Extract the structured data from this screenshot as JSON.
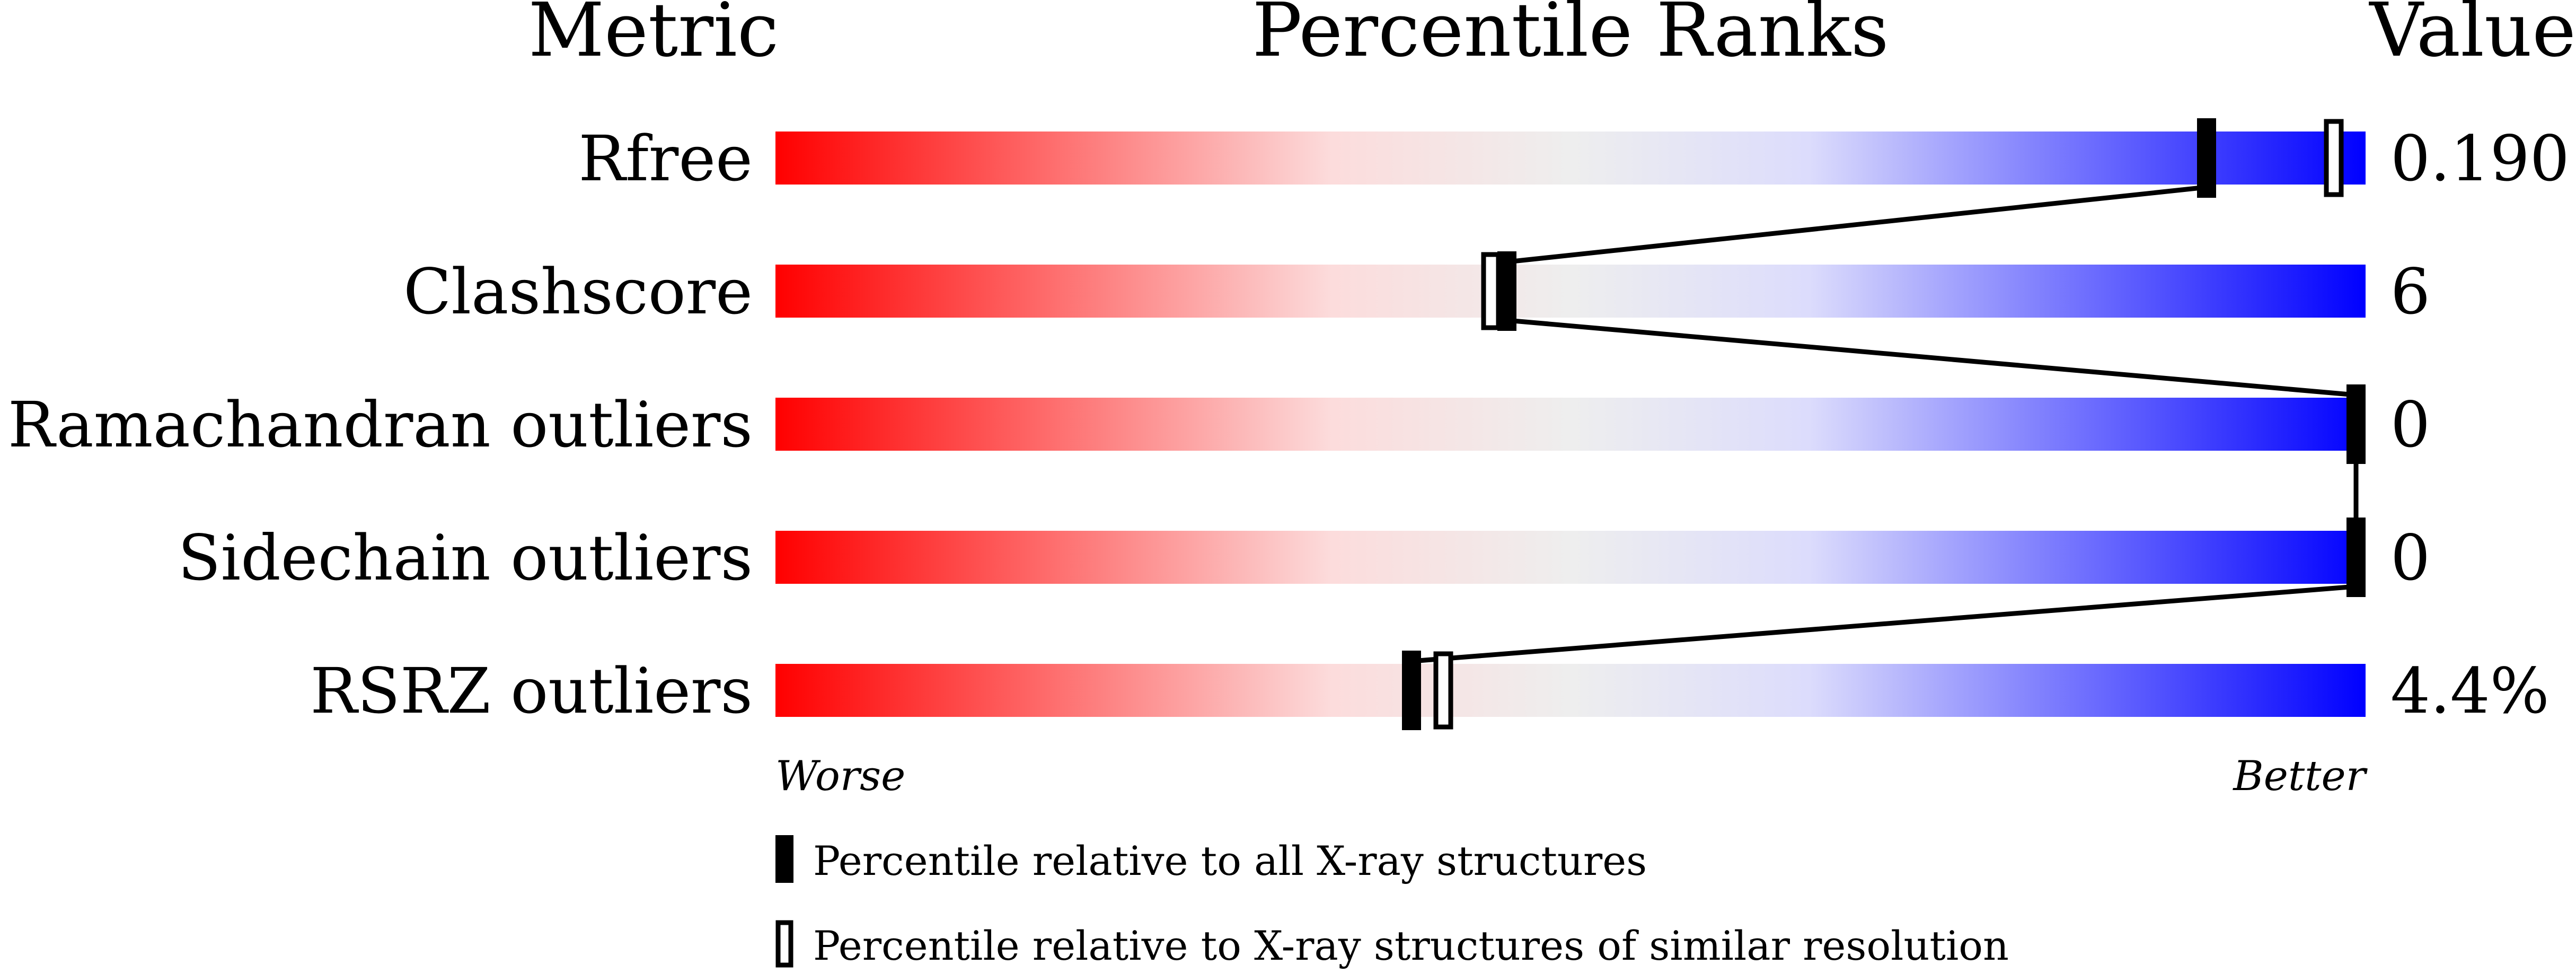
{
  "chart_data": {
    "type": "percentile-slider",
    "headers": {
      "metric": "Metric",
      "percentile": "Percentile Ranks",
      "value": "Value"
    },
    "xlim": [
      0,
      100
    ],
    "axis_labels": {
      "left": "Worse",
      "right": "Better"
    },
    "gradient_colors": [
      "#ff0000",
      "#fcdcdc",
      "#eeeeee",
      "#dcdcfc",
      "#0000ff"
    ],
    "metrics": [
      {
        "name": "Rfree",
        "value": "0.190",
        "percentile_all": 90,
        "percentile_similar": 98
      },
      {
        "name": "Clashscore",
        "value": "6",
        "percentile_all": 46,
        "percentile_similar": 45
      },
      {
        "name": "Ramachandran outliers",
        "value": "0",
        "percentile_all": 100,
        "percentile_similar": null
      },
      {
        "name": "Sidechain outliers",
        "value": "0",
        "percentile_all": 100,
        "percentile_similar": null
      },
      {
        "name": "RSRZ outliers",
        "value": "4.4%",
        "percentile_all": 40,
        "percentile_similar": 42
      }
    ],
    "legend": [
      {
        "marker": "filled",
        "label": "Percentile relative to all X-ray structures"
      },
      {
        "marker": "open",
        "label": "Percentile relative to X-ray structures of similar resolution"
      }
    ]
  }
}
